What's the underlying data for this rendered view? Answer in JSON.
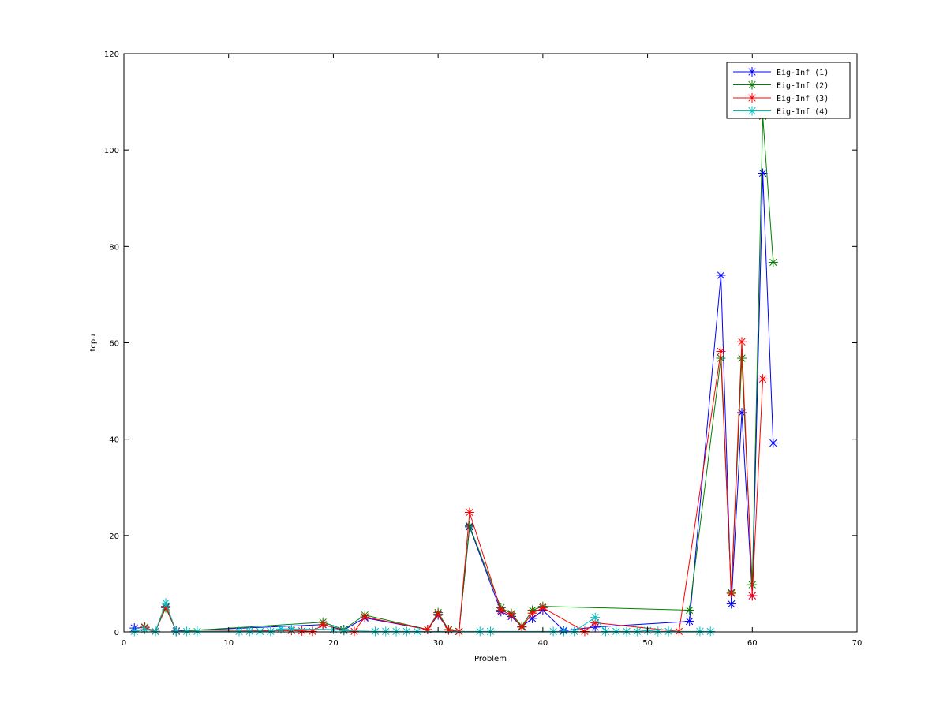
{
  "chart_data": {
    "type": "line",
    "title": "",
    "xlabel": "Problem",
    "ylabel": "tcpu",
    "xlim": [
      0,
      70
    ],
    "ylim": [
      0,
      120
    ],
    "xticks": [
      0,
      10,
      20,
      30,
      40,
      50,
      60,
      70
    ],
    "yticks": [
      0,
      20,
      40,
      60,
      80,
      100,
      120
    ],
    "grid": false,
    "legend_position": "top-right",
    "marker": "asterisk",
    "series": [
      {
        "name": "Eig-Inf (1)",
        "color": "#0000ff",
        "x": [
          1,
          2,
          3,
          4,
          5,
          19,
          21,
          23,
          29,
          30,
          31,
          32,
          33,
          36,
          37,
          38,
          39,
          40,
          42,
          45,
          54,
          57,
          58,
          59,
          60,
          61,
          62
        ],
        "y": [
          0.8,
          0.9,
          0.1,
          5.2,
          0.2,
          1.5,
          0.4,
          2.9,
          0.5,
          3.5,
          0.4,
          0.1,
          21.8,
          4.2,
          3.2,
          1.1,
          2.8,
          4.5,
          0.3,
          1.0,
          2.2,
          74.0,
          5.8,
          45.5,
          7.5,
          95.2,
          39.2
        ]
      },
      {
        "name": "Eig-Inf (2)",
        "color": "#008000",
        "x": [
          2,
          3,
          4,
          5,
          19,
          21,
          23,
          29,
          30,
          31,
          32,
          33,
          36,
          37,
          38,
          39,
          40,
          54,
          57,
          58,
          59,
          60,
          61,
          62
        ],
        "y": [
          1.0,
          0.1,
          5.0,
          0.1,
          2.0,
          0.5,
          3.5,
          0.5,
          4.0,
          0.5,
          0.1,
          22.0,
          5.0,
          3.8,
          1.2,
          4.5,
          5.3,
          4.5,
          56.8,
          8.2,
          56.8,
          9.8,
          107.0,
          76.7
        ]
      },
      {
        "name": "Eig-Inf (3)",
        "color": "#ff0000",
        "x": [
          2,
          3,
          4,
          5,
          16,
          17,
          18,
          19,
          21,
          22,
          23,
          29,
          30,
          31,
          32,
          33,
          36,
          37,
          38,
          39,
          40,
          44,
          45,
          53,
          57,
          58,
          59,
          60,
          61
        ],
        "y": [
          0.9,
          0.1,
          5.3,
          0.1,
          0.3,
          0.2,
          0.1,
          1.5,
          0.3,
          0.1,
          3.1,
          0.5,
          3.7,
          0.4,
          0.1,
          24.8,
          4.5,
          3.5,
          1.0,
          3.9,
          5.0,
          0.1,
          1.9,
          0.1,
          58.2,
          8.0,
          60.2,
          7.5,
          52.5
        ]
      },
      {
        "name": "Eig-Inf (4)",
        "color": "#00bfbf",
        "x": [
          1,
          2,
          3,
          4,
          5,
          6,
          7,
          11,
          12,
          13,
          14,
          15,
          16,
          20,
          21,
          24,
          25,
          26,
          27,
          28,
          34,
          35,
          41,
          42,
          43,
          45,
          46,
          47,
          48,
          49,
          50,
          51,
          52,
          55,
          56
        ],
        "y": [
          0.1,
          0.5,
          0.1,
          6.0,
          0.1,
          0.1,
          0.1,
          0.1,
          0.1,
          0.1,
          0.1,
          0.6,
          0.6,
          0.5,
          0.3,
          0.1,
          0.1,
          0.1,
          0.1,
          0.1,
          0.1,
          0.1,
          0.1,
          0.1,
          0.1,
          3.0,
          0.1,
          0.1,
          0.1,
          0.1,
          0.3,
          0.1,
          0.1,
          0.1,
          0.1
        ]
      }
    ]
  }
}
